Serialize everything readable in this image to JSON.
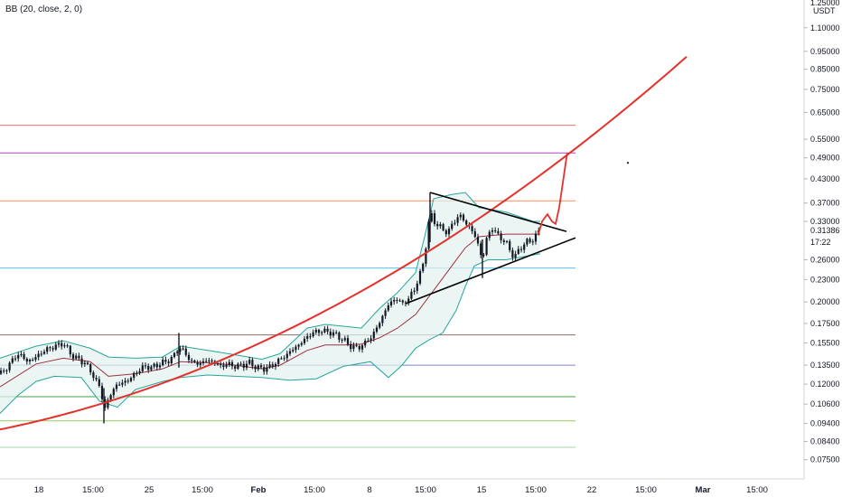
{
  "indicator": {
    "label": "BB (20, close, 2, 0)"
  },
  "price_axis": {
    "currency": "USDT",
    "top_cut_label": "1.25000",
    "current_price": "0.31386",
    "countdown": "17:22"
  },
  "colors": {
    "background": "#ffffff",
    "candle": "#131722",
    "bb_band": "#26a69a",
    "bb_fill": "#e3f2f0",
    "bb_basis": "#a03040",
    "trend_curve": "#e5312b",
    "triangle": "#000000",
    "projection": "#e5312b"
  },
  "chart_data": {
    "type": "candlestick",
    "title": "",
    "y_scale": "log",
    "ylim": [
      0.072,
      1.25
    ],
    "y_ticks": [
      "1.10000",
      "0.95000",
      "0.85000",
      "0.75000",
      "0.65000",
      "0.55000",
      "0.49000",
      "0.43000",
      "0.37000",
      "0.33000",
      "0.26000",
      "0.23000",
      "0.20000",
      "0.17500",
      "0.15500",
      "0.13500",
      "0.12000",
      "0.10600",
      "0.09400",
      "0.08400",
      "0.07500"
    ],
    "x_ticks": [
      "18",
      "15:00",
      "25",
      "15:00",
      "Feb",
      "15:00",
      "8",
      "15:00",
      "15",
      "15:00",
      "22",
      "15:00",
      "Mar",
      "15:00"
    ],
    "close_path": [
      [
        0,
        0.128
      ],
      [
        6,
        0.131
      ],
      [
        14,
        0.14
      ],
      [
        22,
        0.145
      ],
      [
        30,
        0.138
      ],
      [
        38,
        0.141
      ],
      [
        46,
        0.146
      ],
      [
        54,
        0.15
      ],
      [
        62,
        0.152
      ],
      [
        70,
        0.155
      ],
      [
        78,
        0.145
      ],
      [
        86,
        0.14
      ],
      [
        94,
        0.137
      ],
      [
        102,
        0.128
      ],
      [
        110,
        0.118
      ],
      [
        116,
        0.103
      ],
      [
        122,
        0.112
      ],
      [
        128,
        0.119
      ],
      [
        136,
        0.121
      ],
      [
        144,
        0.124
      ],
      [
        152,
        0.13
      ],
      [
        160,
        0.134
      ],
      [
        168,
        0.133
      ],
      [
        176,
        0.136
      ],
      [
        184,
        0.138
      ],
      [
        192,
        0.142
      ],
      [
        198,
        0.152
      ],
      [
        204,
        0.146
      ],
      [
        212,
        0.138
      ],
      [
        220,
        0.136
      ],
      [
        228,
        0.139
      ],
      [
        236,
        0.138
      ],
      [
        244,
        0.134
      ],
      [
        252,
        0.136
      ],
      [
        260,
        0.134
      ],
      [
        268,
        0.135
      ],
      [
        276,
        0.137
      ],
      [
        284,
        0.133
      ],
      [
        292,
        0.132
      ],
      [
        300,
        0.134
      ],
      [
        308,
        0.139
      ],
      [
        316,
        0.143
      ],
      [
        324,
        0.149
      ],
      [
        332,
        0.154
      ],
      [
        340,
        0.161
      ],
      [
        348,
        0.166
      ],
      [
        356,
        0.167
      ],
      [
        364,
        0.166
      ],
      [
        372,
        0.163
      ],
      [
        380,
        0.158
      ],
      [
        388,
        0.152
      ],
      [
        396,
        0.15
      ],
      [
        404,
        0.155
      ],
      [
        412,
        0.162
      ],
      [
        418,
        0.172
      ],
      [
        424,
        0.184
      ],
      [
        430,
        0.197
      ],
      [
        438,
        0.204
      ],
      [
        446,
        0.198
      ],
      [
        452,
        0.204
      ],
      [
        458,
        0.214
      ],
      [
        464,
        0.235
      ],
      [
        468,
        0.25
      ],
      [
        472,
        0.29
      ],
      [
        476,
        0.35
      ],
      [
        480,
        0.33
      ],
      [
        486,
        0.322
      ],
      [
        492,
        0.308
      ],
      [
        498,
        0.315
      ],
      [
        504,
        0.332
      ],
      [
        508,
        0.345
      ],
      [
        514,
        0.33
      ],
      [
        520,
        0.318
      ],
      [
        526,
        0.3
      ],
      [
        530,
        0.282
      ],
      [
        534,
        0.257
      ],
      [
        538,
        0.293
      ],
      [
        544,
        0.318
      ],
      [
        550,
        0.305
      ],
      [
        556,
        0.295
      ],
      [
        562,
        0.285
      ],
      [
        566,
        0.27
      ],
      [
        570,
        0.265
      ],
      [
        576,
        0.28
      ],
      [
        582,
        0.29
      ],
      [
        588,
        0.292
      ],
      [
        594,
        0.304
      ],
      [
        598,
        0.314
      ]
    ],
    "bollinger": {
      "upper": [
        [
          0,
          0.141
        ],
        [
          40,
          0.152
        ],
        [
          70,
          0.157
        ],
        [
          100,
          0.15
        ],
        [
          120,
          0.142
        ],
        [
          150,
          0.141
        ],
        [
          180,
          0.142
        ],
        [
          200,
          0.152
        ],
        [
          230,
          0.148
        ],
        [
          260,
          0.144
        ],
        [
          290,
          0.14
        ],
        [
          310,
          0.145
        ],
        [
          340,
          0.17
        ],
        [
          360,
          0.174
        ],
        [
          380,
          0.172
        ],
        [
          400,
          0.17
        ],
        [
          420,
          0.192
        ],
        [
          440,
          0.212
        ],
        [
          460,
          0.24
        ],
        [
          470,
          0.3
        ],
        [
          480,
          0.38
        ],
        [
          500,
          0.39
        ],
        [
          515,
          0.395
        ],
        [
          530,
          0.36
        ],
        [
          560,
          0.35
        ],
        [
          590,
          0.33
        ],
        [
          598,
          0.33
        ]
      ],
      "lower": [
        [
          0,
          0.1
        ],
        [
          20,
          0.112
        ],
        [
          40,
          0.122
        ],
        [
          60,
          0.126
        ],
        [
          90,
          0.125
        ],
        [
          110,
          0.108
        ],
        [
          130,
          0.104
        ],
        [
          150,
          0.116
        ],
        [
          180,
          0.122
        ],
        [
          200,
          0.125
        ],
        [
          230,
          0.127
        ],
        [
          260,
          0.126
        ],
        [
          290,
          0.125
        ],
        [
          320,
          0.123
        ],
        [
          350,
          0.124
        ],
        [
          380,
          0.134
        ],
        [
          410,
          0.138
        ],
        [
          430,
          0.125
        ],
        [
          445,
          0.135
        ],
        [
          460,
          0.15
        ],
        [
          475,
          0.158
        ],
        [
          490,
          0.165
        ],
        [
          505,
          0.19
        ],
        [
          515,
          0.22
        ],
        [
          525,
          0.25
        ],
        [
          540,
          0.26
        ],
        [
          560,
          0.26
        ],
        [
          598,
          0.27
        ]
      ],
      "basis": [
        [
          0,
          0.118
        ],
        [
          40,
          0.136
        ],
        [
          70,
          0.141
        ],
        [
          100,
          0.138
        ],
        [
          120,
          0.126
        ],
        [
          150,
          0.128
        ],
        [
          180,
          0.132
        ],
        [
          200,
          0.138
        ],
        [
          230,
          0.137
        ],
        [
          260,
          0.135
        ],
        [
          290,
          0.132
        ],
        [
          310,
          0.135
        ],
        [
          340,
          0.148
        ],
        [
          360,
          0.153
        ],
        [
          380,
          0.153
        ],
        [
          400,
          0.154
        ],
        [
          420,
          0.16
        ],
        [
          440,
          0.17
        ],
        [
          460,
          0.185
        ],
        [
          480,
          0.215
        ],
        [
          500,
          0.25
        ],
        [
          515,
          0.28
        ],
        [
          530,
          0.3
        ],
        [
          560,
          0.305
        ],
        [
          598,
          0.305
        ]
      ]
    },
    "horizontal_levels": [
      {
        "price": 0.6,
        "color": "#e57373"
      },
      {
        "price": 0.505,
        "color": "#ab47bc"
      },
      {
        "price": 0.375,
        "color": "#ff8a65"
      },
      {
        "price": 0.247,
        "color": "#4fc3f7"
      },
      {
        "price": 0.163,
        "color": "#8d6e63"
      },
      {
        "price": 0.135,
        "color": "#7986cb"
      },
      {
        "price": 0.111,
        "color": "#43a047"
      },
      {
        "price": 0.0955,
        "color": "#9ccc65"
      },
      {
        "price": 0.081,
        "color": "#a5d6a7"
      }
    ]
  }
}
